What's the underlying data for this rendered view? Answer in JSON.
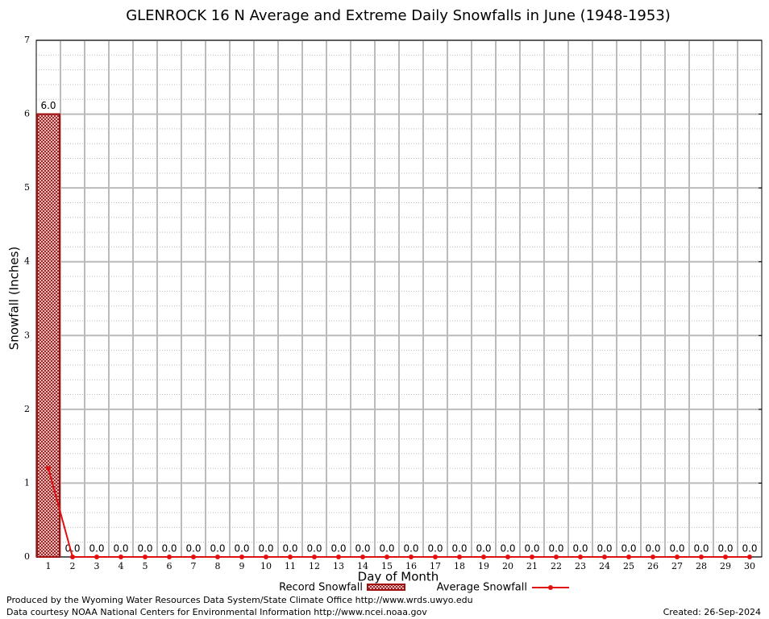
{
  "chart_data": {
    "type": "bar",
    "title": "GLENROCK 16 N Average and Extreme Daily Snowfalls in June (1948-1953)",
    "x_label": "Day of Month",
    "y_label": "Snowfall (Inches)",
    "categories": [
      1,
      2,
      3,
      4,
      5,
      6,
      7,
      8,
      9,
      10,
      11,
      12,
      13,
      14,
      15,
      16,
      17,
      18,
      19,
      20,
      21,
      22,
      23,
      24,
      25,
      26,
      27,
      28,
      29,
      30
    ],
    "series": [
      {
        "name": "Record Snowfall",
        "color": "#a01010",
        "values": [
          6,
          0,
          0,
          0,
          0,
          0,
          0,
          0,
          0,
          0,
          0,
          0,
          0,
          0,
          0,
          0,
          0,
          0,
          0,
          0,
          0,
          0,
          0,
          0,
          0,
          0,
          0,
          0,
          0,
          0
        ],
        "value_labels": [
          "6.0",
          "0.0",
          "0.0",
          "0.0",
          "0.0",
          "0.0",
          "0.0",
          "0.0",
          "0.0",
          "0.0",
          "0.0",
          "0.0",
          "0.0",
          "0.0",
          "0.0",
          "0.0",
          "0.0",
          "0.0",
          "0.0",
          "0.0",
          "0.0",
          "0.0",
          "0.0",
          "0.0",
          "0.0",
          "0.0",
          "0.0",
          "0.0",
          "0.0",
          "0.0"
        ]
      },
      {
        "name": "Average Snowfall",
        "color": "#e01010",
        "values": [
          1.2,
          0,
          0,
          0,
          0,
          0,
          0,
          0,
          0,
          0,
          0,
          0,
          0,
          0,
          0,
          0,
          0,
          0,
          0,
          0,
          0,
          0,
          0,
          0,
          0,
          0,
          0,
          0,
          0,
          0
        ]
      }
    ],
    "ylim": [
      0,
      7
    ],
    "yticks": [
      0,
      1,
      2,
      3,
      4,
      5,
      6,
      7
    ],
    "grid": true,
    "footer_left": [
      "Produced by the Wyoming Water Resources Data System/State Climate Office http://www.wrds.uwyo.edu",
      "Data courtesy NOAA National Centers for Environmental Information http://www.ncei.noaa.gov"
    ],
    "footer_right": "Created:  26-Sep-2024"
  }
}
